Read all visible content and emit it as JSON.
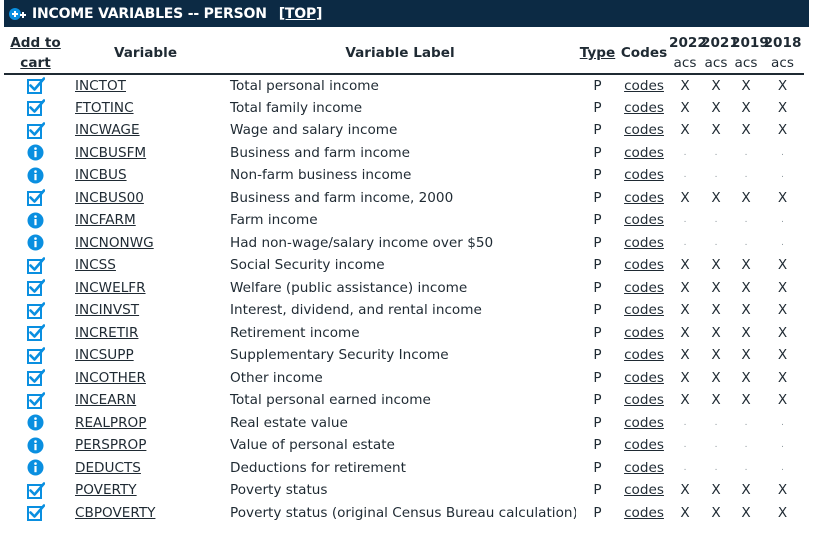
{
  "header": {
    "title": "INCOME VARIABLES -- PERSON",
    "top_link": "[TOP]",
    "title_icon": "add-to-cart-icon"
  },
  "columns": {
    "cart_line1": "Add to",
    "cart_line2": "cart",
    "variable": "Variable",
    "label": "Variable Label",
    "type": "Type",
    "codes": "Codes",
    "samples": [
      {
        "year": "2022",
        "sub": "acs"
      },
      {
        "year": "2021",
        "sub": "acs"
      },
      {
        "year": "2019",
        "sub": "acs"
      },
      {
        "year": "2018",
        "sub": "acs"
      }
    ]
  },
  "colors": {
    "header_bg": "#0c2a44",
    "icon_blue": "#0a8fe0",
    "text": "#1f2a33"
  },
  "rows": [
    {
      "status": "check",
      "variable": "INCTOT",
      "label": "Total personal income",
      "type": "P",
      "codes": "codes",
      "samples": [
        "X",
        "X",
        "X",
        "X"
      ]
    },
    {
      "status": "check",
      "variable": "FTOTINC",
      "label": "Total family income",
      "type": "P",
      "codes": "codes",
      "samples": [
        "X",
        "X",
        "X",
        "X"
      ]
    },
    {
      "status": "check",
      "variable": "INCWAGE",
      "label": "Wage and salary income",
      "type": "P",
      "codes": "codes",
      "samples": [
        "X",
        "X",
        "X",
        "X"
      ]
    },
    {
      "status": "info",
      "variable": "INCBUSFM",
      "label": "Business and farm income",
      "type": "P",
      "codes": "codes",
      "samples": [
        ".",
        ".",
        ".",
        "."
      ]
    },
    {
      "status": "info",
      "variable": "INCBUS",
      "label": "Non-farm business income",
      "type": "P",
      "codes": "codes",
      "samples": [
        ".",
        ".",
        ".",
        "."
      ]
    },
    {
      "status": "check",
      "variable": "INCBUS00",
      "label": "Business and farm income, 2000",
      "type": "P",
      "codes": "codes",
      "samples": [
        "X",
        "X",
        "X",
        "X"
      ]
    },
    {
      "status": "info",
      "variable": "INCFARM",
      "label": "Farm income",
      "type": "P",
      "codes": "codes",
      "samples": [
        ".",
        ".",
        ".",
        "."
      ]
    },
    {
      "status": "info",
      "variable": "INCNONWG",
      "label": "Had non-wage/salary income over $50",
      "type": "P",
      "codes": "codes",
      "samples": [
        ".",
        ".",
        ".",
        "."
      ]
    },
    {
      "status": "check",
      "variable": "INCSS",
      "label": "Social Security income",
      "type": "P",
      "codes": "codes",
      "samples": [
        "X",
        "X",
        "X",
        "X"
      ]
    },
    {
      "status": "check",
      "variable": "INCWELFR",
      "label": "Welfare (public assistance) income",
      "type": "P",
      "codes": "codes",
      "samples": [
        "X",
        "X",
        "X",
        "X"
      ]
    },
    {
      "status": "check",
      "variable": "INCINVST",
      "label": "Interest, dividend, and rental income",
      "type": "P",
      "codes": "codes",
      "samples": [
        "X",
        "X",
        "X",
        "X"
      ]
    },
    {
      "status": "check",
      "variable": "INCRETIR",
      "label": "Retirement income",
      "type": "P",
      "codes": "codes",
      "samples": [
        "X",
        "X",
        "X",
        "X"
      ]
    },
    {
      "status": "check",
      "variable": "INCSUPP",
      "label": "Supplementary Security Income",
      "type": "P",
      "codes": "codes",
      "samples": [
        "X",
        "X",
        "X",
        "X"
      ]
    },
    {
      "status": "check",
      "variable": "INCOTHER",
      "label": "Other income",
      "type": "P",
      "codes": "codes",
      "samples": [
        "X",
        "X",
        "X",
        "X"
      ]
    },
    {
      "status": "check",
      "variable": "INCEARN",
      "label": "Total personal earned income",
      "type": "P",
      "codes": "codes",
      "samples": [
        "X",
        "X",
        "X",
        "X"
      ]
    },
    {
      "status": "info",
      "variable": "REALPROP",
      "label": "Real estate value",
      "type": "P",
      "codes": "codes",
      "samples": [
        ".",
        ".",
        ".",
        "."
      ]
    },
    {
      "status": "info",
      "variable": "PERSPROP",
      "label": "Value of personal estate",
      "type": "P",
      "codes": "codes",
      "samples": [
        ".",
        ".",
        ".",
        "."
      ]
    },
    {
      "status": "info",
      "variable": "DEDUCTS",
      "label": "Deductions for retirement",
      "type": "P",
      "codes": "codes",
      "samples": [
        ".",
        ".",
        ".",
        "."
      ]
    },
    {
      "status": "check",
      "variable": "POVERTY",
      "label": "Poverty status",
      "type": "P",
      "codes": "codes",
      "samples": [
        "X",
        "X",
        "X",
        "X"
      ]
    },
    {
      "status": "check",
      "variable": "CBPOVERTY",
      "label": "Poverty status (original Census Bureau calculation)",
      "type": "P",
      "codes": "codes",
      "samples": [
        "X",
        "X",
        "X",
        "X"
      ]
    }
  ]
}
